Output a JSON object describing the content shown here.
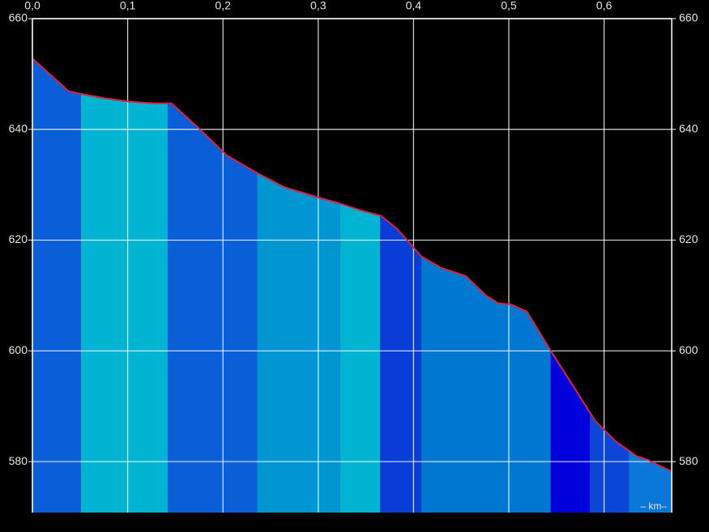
{
  "chart_data": {
    "type": "area",
    "x_label": "– km–",
    "xlim": [
      0,
      0.671
    ],
    "ylim": [
      570.8,
      660
    ],
    "xticks": [
      {
        "value": 0,
        "label": "0,0"
      },
      {
        "value": 0.1,
        "label": "0,1"
      },
      {
        "value": 0.2,
        "label": "0,2"
      },
      {
        "value": 0.3,
        "label": "0,3"
      },
      {
        "value": 0.4,
        "label": "0,4"
      },
      {
        "value": 0.5,
        "label": "0,5"
      },
      {
        "value": 0.6,
        "label": "0,6"
      }
    ],
    "yticks": [
      580,
      600,
      620,
      640,
      660
    ],
    "grid": true,
    "line_color": "#e0203c",
    "x": [
      0,
      0.038,
      0.051,
      0.077,
      0.102,
      0.128,
      0.146,
      0.174,
      0.204,
      0.236,
      0.264,
      0.3,
      0.323,
      0.344,
      0.366,
      0.383,
      0.408,
      0.429,
      0.455,
      0.476,
      0.489,
      0.502,
      0.519,
      0.544,
      0.57,
      0.591,
      0.612,
      0.634,
      0.646,
      0.671
    ],
    "values": [
      652.8,
      646.9,
      646.4,
      645.6,
      645.0,
      644.7,
      644.7,
      640.3,
      635.3,
      632.1,
      629.6,
      627.7,
      626.6,
      625.4,
      624.4,
      622.0,
      617.1,
      615.0,
      613.5,
      610.0,
      608.6,
      608.4,
      607.1,
      600.0,
      593.0,
      587.3,
      583.7,
      581.0,
      580.3,
      578.2
    ],
    "segments": [
      {
        "start": 0,
        "end": 0.051,
        "color": "#0a5fd8"
      },
      {
        "start": 0.051,
        "end": 0.142,
        "color": "#00b4d2"
      },
      {
        "start": 0.142,
        "end": 0.236,
        "color": "#0a5fd8"
      },
      {
        "start": 0.236,
        "end": 0.323,
        "color": "#0096d2"
      },
      {
        "start": 0.323,
        "end": 0.365,
        "color": "#00b4d2"
      },
      {
        "start": 0.365,
        "end": 0.408,
        "color": "#0a3cd8"
      },
      {
        "start": 0.408,
        "end": 0.544,
        "color": "#0078d2"
      },
      {
        "start": 0.544,
        "end": 0.585,
        "color": "#0000dc"
      },
      {
        "start": 0.585,
        "end": 0.626,
        "color": "#0a46d8"
      },
      {
        "start": 0.626,
        "end": 0.671,
        "color": "#0a78d8"
      }
    ]
  }
}
